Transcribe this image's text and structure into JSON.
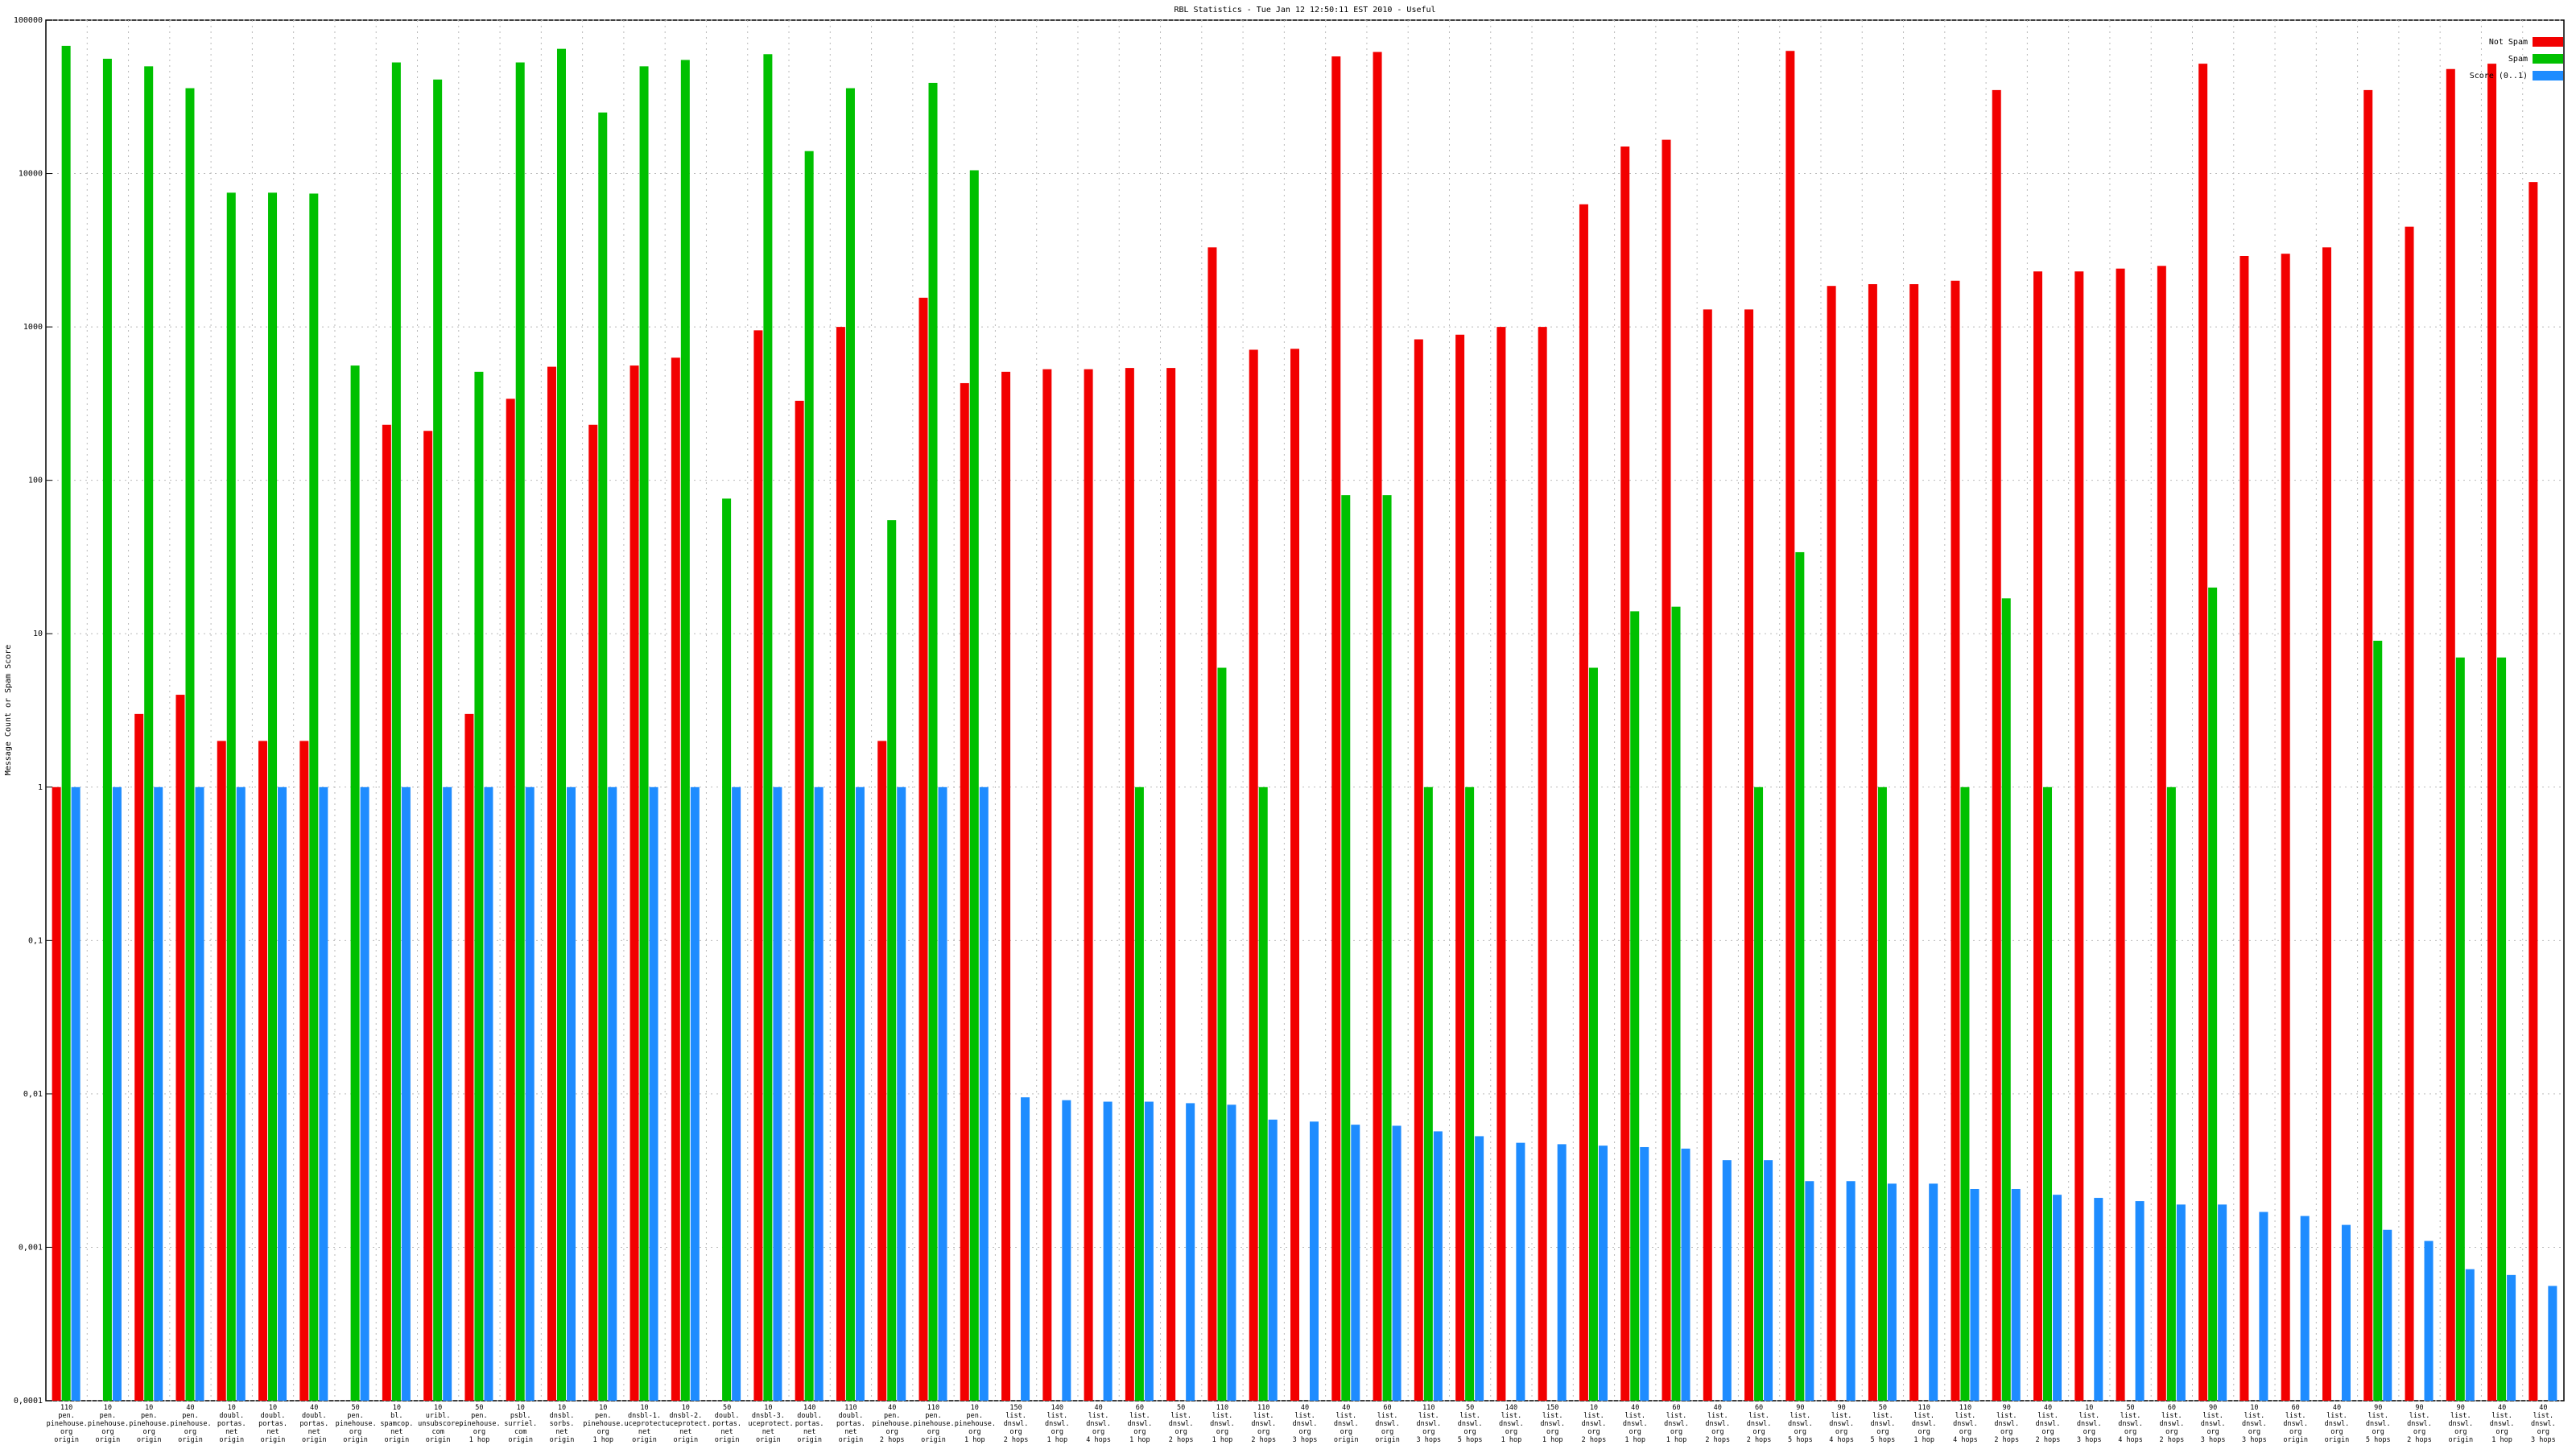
{
  "chart_data": {
    "type": "bar",
    "title": "RBL Statistics - Tue Jan 12 12:50:11 EST 2010 - Useful",
    "y_label": "Message Count or Spam Score",
    "log_scale": true,
    "grid": true,
    "legend": "upper right",
    "ylim": [
      0.0001,
      100000
    ],
    "yticks": [
      {
        "value": 0.0001,
        "label": "0,0001"
      },
      {
        "value": 0.001,
        "label": "0,001"
      },
      {
        "value": 0.01,
        "label": "0,01"
      },
      {
        "value": 0.1,
        "label": "0,1"
      },
      1,
      10,
      100,
      1000,
      10000,
      100000
    ],
    "categories": [
      "110\npen.\npinehouse.\norg\norigin",
      "10\npen.\npinehouse.\norg\norigin",
      "10\npen.\npinehouse.\norg\norigin",
      "40\npen.\npinehouse.\norg\norigin",
      "10\ndoubl.\nportas.\nnet\norigin",
      "10\ndoubl.\nportas.\nnet\norigin",
      "40\ndoubl.\nportas.\nnet\norigin",
      "50\npen.\npinehouse.\norg\norigin",
      "10\nbl.\nspamcop.\nnet\norigin",
      "10\nuribl.\nunsubscore.\ncom\norigin",
      "50\npen.\npinehouse.\norg\n1 hop",
      "10\npsbl.\nsurriel.\ncom\norigin",
      "10\ndnsbl.\nsorbs.\nnet\norigin",
      "10\npen.\npinehouse.\norg\n1 hop",
      "10\ndnsbl-1.\nuceprotect.\nnet\norigin",
      "10\ndnsbl-2.\nuceprotect.\nnet\norigin",
      "50\ndoubl.\nportas.\nnet\norigin",
      "10\ndnsbl-3.\nuceprotect.\nnet\norigin",
      "140\ndoubl.\nportas.\nnet\norigin",
      "110\ndoubl.\nportas.\nnet\norigin",
      "40\npen.\npinehouse.\norg\n2 hops",
      "110\npen.\npinehouse.\norg\norigin",
      "10\npen.\npinehouse.\norg\n1 hop",
      "150\nlist.\ndnswl.\norg\n2 hops",
      "140\nlist.\ndnswl.\norg\n1 hop",
      "40\nlist.\ndnswl.\norg\n4 hops",
      "60\nlist.\ndnswl.\norg\n1 hop",
      "50\nlist.\ndnswl.\norg\n2 hops",
      "110\nlist.\ndnswl.\norg\n1 hop",
      "110\nlist.\ndnswl.\norg\n2 hops",
      "40\nlist.\ndnswl.\norg\n3 hops",
      "40\nlist.\ndnswl.\norg\norigin",
      "60\nlist.\ndnswl.\norg\norigin",
      "110\nlist.\ndnswl.\norg\n3 hops",
      "50\nlist.\ndnswl.\norg\n5 hops",
      "140\nlist.\ndnswl.\norg\n1 hop",
      "150\nlist.\ndnswl.\norg\n1 hop",
      "10\nlist.\ndnswl.\norg\n2 hops",
      "40\nlist.\ndnswl.\norg\n1 hop",
      "60\nlist.\ndnswl.\norg\n1 hop",
      "40\nlist.\ndnswl.\norg\n2 hops",
      "60\nlist.\ndnswl.\norg\n2 hops",
      "90\nlist.\ndnswl.\norg\n5 hops",
      "90\nlist.\ndnswl.\norg\n4 hops",
      "50\nlist.\ndnswl.\norg\n5 hops",
      "110\nlist.\ndnswl.\norg\n1 hop",
      "110\nlist.\ndnswl.\norg\n4 hops",
      "90\nlist.\ndnswl.\norg\n2 hops",
      "40\nlist.\ndnswl.\norg\n2 hops",
      "10\nlist.\ndnswl.\norg\n3 hops",
      "50\nlist.\ndnswl.\norg\n4 hops",
      "60\nlist.\ndnswl.\norg\n2 hops",
      "90\nlist.\ndnswl.\norg\n3 hops",
      "10\nlist.\ndnswl.\norg\n3 hops",
      "60\nlist.\ndnswl.\norg\norigin",
      "40\nlist.\ndnswl.\norg\norigin",
      "90\nlist.\ndnswl.\norg\n5 hops",
      "90\nlist.\ndnswl.\norg\n2 hops",
      "90\nlist.\ndnswl.\norg\norigin",
      "40\nlist.\ndnswl.\norg\n1 hop",
      "40\nlist.\ndnswl.\norg\n3 hops"
    ],
    "series": [
      {
        "name": "Not Spam",
        "color": "#f20000",
        "values": [
          1,
          null,
          3,
          4,
          2,
          2,
          2,
          null,
          230,
          210,
          3,
          340,
          550,
          230,
          560,
          630,
          null,
          950,
          330,
          1000,
          2,
          1550,
          430,
          510,
          530,
          530,
          540,
          540,
          3300,
          710,
          720,
          58000,
          62000,
          830,
          890,
          1000,
          1000,
          6300,
          15000,
          16600,
          1300,
          1300,
          63000,
          1850,
          1900,
          1900,
          2000,
          35000,
          2300,
          2300,
          2400,
          2500,
          52000,
          2900,
          3000,
          3300,
          35000,
          4500,
          48000,
          52000,
          8800
        ]
      },
      {
        "name": "Spam",
        "color": "#00c000",
        "values": [
          68000,
          56000,
          50000,
          36000,
          7500,
          7500,
          7400,
          560,
          53000,
          41000,
          510,
          53000,
          65000,
          25000,
          50000,
          55000,
          76,
          60000,
          14000,
          36000,
          55,
          39000,
          10500,
          null,
          null,
          null,
          1,
          null,
          6,
          1,
          null,
          80,
          80,
          1,
          1,
          null,
          null,
          6,
          14,
          15,
          null,
          1,
          34,
          null,
          1,
          null,
          1,
          17,
          1,
          null,
          null,
          1,
          20,
          null,
          null,
          null,
          9,
          null,
          7,
          7,
          null
        ]
      },
      {
        "name": "Score (0..1)",
        "color": "#1e8cff",
        "values": [
          1,
          1,
          1,
          1,
          1,
          1,
          1,
          1,
          1,
          1,
          1,
          1,
          1,
          1,
          1,
          1,
          1,
          1,
          1,
          1,
          1,
          1,
          1,
          0.0095,
          0.0091,
          0.0089,
          0.0089,
          0.0087,
          0.0085,
          0.0068,
          0.0066,
          0.0063,
          0.0062,
          0.0057,
          0.0053,
          0.0048,
          0.0047,
          0.0046,
          0.0045,
          0.0044,
          0.0037,
          0.0037,
          0.0027,
          0.0027,
          0.0026,
          0.0026,
          0.0024,
          0.0024,
          0.0022,
          0.0021,
          0.002,
          0.0019,
          0.0019,
          0.0017,
          0.0016,
          0.0014,
          0.0013,
          0.0011,
          0.00072,
          0.00066,
          0.00056
        ]
      }
    ]
  }
}
